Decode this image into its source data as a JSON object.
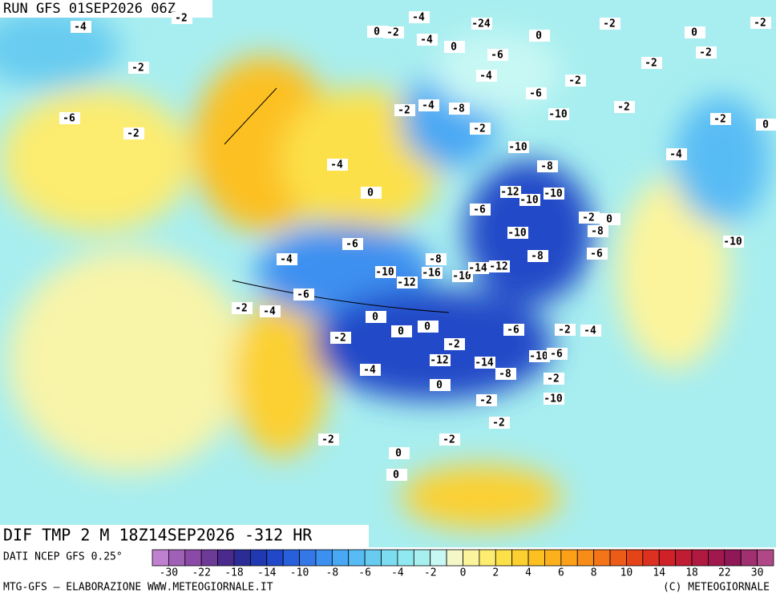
{
  "header": {
    "run": "RUN GFS 01SEP2026 06Z"
  },
  "map": {
    "title": "DIF TMP 2 M 18Z14SEP2026 -312 HR",
    "contour_labels": [
      "-4",
      "-2",
      "-2",
      "0",
      "-2",
      "-4",
      "-24",
      "0",
      "-2",
      "0",
      "-2",
      "-2",
      "-2",
      "-2",
      "-4",
      "-6",
      "0",
      "-4",
      "-2",
      "-2",
      "0",
      "-4",
      "-6",
      "-10",
      "-8",
      "-4",
      "-2",
      "-6",
      "-2",
      "-4",
      "0",
      "-2",
      "-10",
      "-8",
      "-12",
      "-10",
      "-6",
      "-10",
      "-10",
      "-8",
      "-2",
      "0",
      "-8",
      "-10",
      "-6",
      "-4",
      "-6",
      "-8",
      "-10",
      "-12",
      "-16",
      "-10",
      "-14",
      "-12",
      "-6",
      "0",
      "0",
      "0",
      "-2",
      "-12",
      "-14",
      "-6",
      "-8",
      "-10",
      "-6",
      "-2",
      "-4",
      "-10",
      "-2",
      "-2",
      "0",
      "0",
      "0",
      "-2",
      "-2",
      "-2",
      "-4",
      "-2",
      "-4",
      "-2"
    ]
  },
  "footer": {
    "source": "DATI NCEP GFS 0.25°",
    "credit_left": "MTG-GFS – ELABORAZIONE WWW.METEOGIORNALE.IT",
    "credit_right": "(C) METEOGIORNALE",
    "colorbar": {
      "colors": [
        "#c080d0",
        "#a060b8",
        "#8c4aa8",
        "#6e3a98",
        "#4a2a8c",
        "#2c2c96",
        "#2038b0",
        "#2048c8",
        "#2860dc",
        "#3478e8",
        "#3c90f0",
        "#48a8f4",
        "#58bcf4",
        "#68ccf0",
        "#7cdcf0",
        "#90e8f0",
        "#a8f0f0",
        "#c8f8f4",
        "#f4f8c8",
        "#fcf49c",
        "#fcec70",
        "#fce048",
        "#fcd030",
        "#fcc020",
        "#fcb01c",
        "#fca018",
        "#f88c18",
        "#f47418",
        "#ec5c18",
        "#e44418",
        "#dc3020",
        "#d02028",
        "#c01c34",
        "#b01a40",
        "#a0184c",
        "#901858",
        "#a03070",
        "#b04888"
      ],
      "ticks": [
        "-30",
        "-22",
        "-18",
        "-14",
        "-10",
        "-8",
        "-6",
        "-4",
        "-2",
        "0",
        "2",
        "4",
        "6",
        "8",
        "10",
        "14",
        "18",
        "22",
        "30"
      ]
    }
  }
}
